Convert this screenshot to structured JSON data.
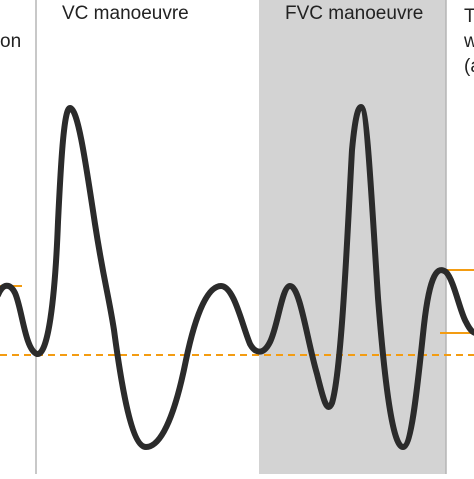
{
  "labels": {
    "left_partial": "on",
    "vc": "VC manoeuvre",
    "fvc": "FVC manoeuvre",
    "right_partial": "T\nw\n(a"
  },
  "colors": {
    "background": "#ffffff",
    "shaded_panel": "#d3d3d3",
    "divider": "#b5b5b5",
    "trace": "#2b2b2b",
    "baseline": "#f39c12",
    "label_text": "#222222"
  },
  "shaded_region": "FVC manoeuvre",
  "baseline_style": "dashed"
}
